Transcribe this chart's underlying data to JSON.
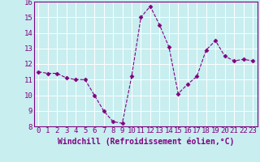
{
  "x": [
    0,
    1,
    2,
    3,
    4,
    5,
    6,
    7,
    8,
    9,
    10,
    11,
    12,
    13,
    14,
    15,
    16,
    17,
    18,
    19,
    20,
    21,
    22,
    23
  ],
  "y": [
    11.5,
    11.4,
    11.4,
    11.1,
    11.0,
    11.0,
    10.0,
    9.0,
    8.3,
    8.2,
    11.2,
    15.0,
    15.7,
    14.5,
    13.1,
    10.1,
    10.7,
    11.2,
    12.9,
    13.5,
    12.5,
    12.2,
    12.3,
    12.2
  ],
  "line_color": "#800080",
  "marker": "D",
  "marker_size": 2.5,
  "bg_color": "#c8eef0",
  "grid_color": "#ffffff",
  "xlabel": "Windchill (Refroidissement éolien,°C)",
  "xlabel_color": "#800080",
  "tick_color": "#800080",
  "ylim": [
    8,
    16
  ],
  "xlim": [
    -0.5,
    23.5
  ],
  "yticks": [
    8,
    9,
    10,
    11,
    12,
    13,
    14,
    15,
    16
  ],
  "xticks": [
    0,
    1,
    2,
    3,
    4,
    5,
    6,
    7,
    8,
    9,
    10,
    11,
    12,
    13,
    14,
    15,
    16,
    17,
    18,
    19,
    20,
    21,
    22,
    23
  ],
  "tick_fontsize": 6.5,
  "xlabel_fontsize": 7.0,
  "xlabel_fontweight": "bold"
}
